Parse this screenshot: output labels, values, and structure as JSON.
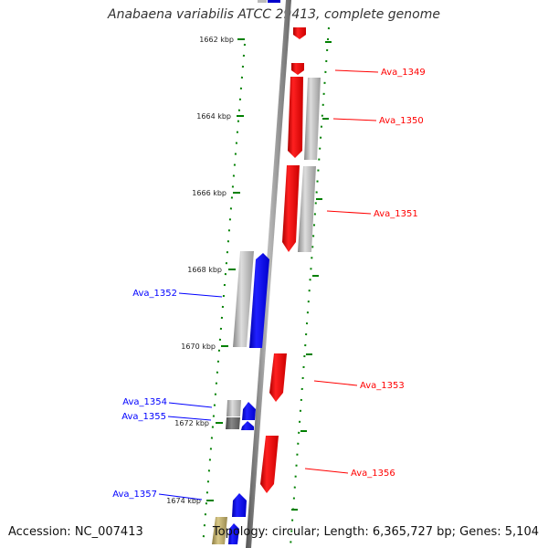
{
  "title": "Anabaena variabilis ATCC 29413, complete genome",
  "footer": {
    "accession": "Accession: NC_007413",
    "stats": "Topology: circular; Length: 6,365,727 bp; Genes: 5,104"
  },
  "scale_labels": [
    "1662 kbp",
    "1664 kbp",
    "1666 kbp",
    "1668 kbp",
    "1670 kbp",
    "1672 kbp",
    "1674 kbp"
  ],
  "genes": [
    {
      "label": "Ava_1349",
      "strand": "forward"
    },
    {
      "label": "Ava_1350",
      "strand": "forward"
    },
    {
      "label": "Ava_1351",
      "strand": "forward"
    },
    {
      "label": "Ava_1352",
      "strand": "reverse"
    },
    {
      "label": "Ava_1353",
      "strand": "forward"
    },
    {
      "label": "Ava_1354",
      "strand": "reverse"
    },
    {
      "label": "Ava_1355",
      "strand": "reverse"
    },
    {
      "label": "Ava_1356",
      "strand": "forward"
    },
    {
      "label": "Ava_1357",
      "strand": "reverse"
    }
  ],
  "colors": {
    "forward": "#ff0000",
    "reverse": "#0000ff",
    "ruler": "#008000",
    "backbone": "#888888",
    "homolog": "#bbbbbb",
    "other": "#c8b878"
  }
}
